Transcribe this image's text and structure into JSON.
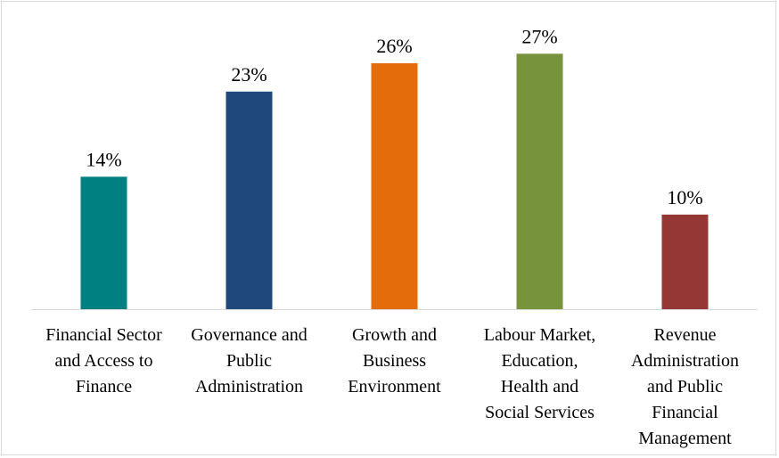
{
  "chart_data": {
    "type": "bar",
    "title": "",
    "xlabel": "",
    "ylabel": "",
    "categories": [
      "Financial Sector and Access to Finance",
      "Governance and Public Administration",
      "Growth and Business Environment",
      "Labour Market, Education, Health and Social Services",
      "Revenue Administration and Public Financial Management"
    ],
    "category_lines": [
      [
        "Financial Sector",
        "and Access to",
        "Finance"
      ],
      [
        "Governance and",
        "Public",
        "Administration"
      ],
      [
        "Growth and",
        "Business",
        "Environment"
      ],
      [
        "Labour Market,",
        "Education,",
        "Health and",
        "Social Services"
      ],
      [
        "Revenue",
        "Administration",
        "and Public",
        "Financial",
        "Management"
      ]
    ],
    "values": [
      14,
      23,
      26,
      27,
      10
    ],
    "value_labels": [
      "14%",
      "23%",
      "26%",
      "27%",
      "10%"
    ],
    "colors": [
      "#008080",
      "#1f497d",
      "#e46c0a",
      "#77933c",
      "#953735"
    ],
    "ylim": [
      0,
      27.5
    ],
    "grid": false,
    "legend": "none"
  }
}
